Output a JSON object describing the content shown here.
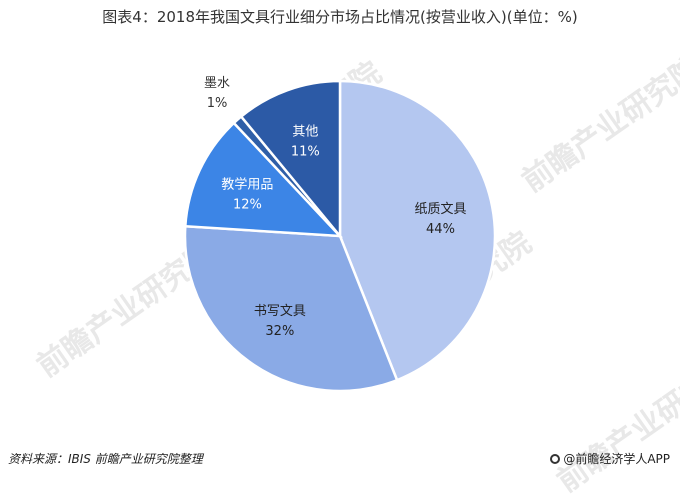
{
  "title": "图表4：2018年我国文具行业细分市场占比情况(按营业收入)(单位：%)",
  "source": "资料来源：IBIS 前瞻产业研究院整理",
  "brand": "@前瞻经济学人APP",
  "watermark": "前瞻产业研究院",
  "chart_data": {
    "type": "pie",
    "title": "图表4：2018年我国文具行业细分市场占比情况(按营业收入)(单位：%)",
    "unit": "%",
    "slices": [
      {
        "name": "纸质文具",
        "value": 44,
        "label": "44%",
        "color": "#b4c7f0"
      },
      {
        "name": "书写文具",
        "value": 32,
        "label": "32%",
        "color": "#8aaae6"
      },
      {
        "name": "教学用品",
        "value": 12,
        "label": "12%",
        "color": "#3c85e6"
      },
      {
        "name": "墨水",
        "value": 1,
        "label": "1%",
        "color": "#2f5fa8"
      },
      {
        "name": "其他",
        "value": 11,
        "label": "11%",
        "color": "#2c5aa6"
      }
    ]
  }
}
